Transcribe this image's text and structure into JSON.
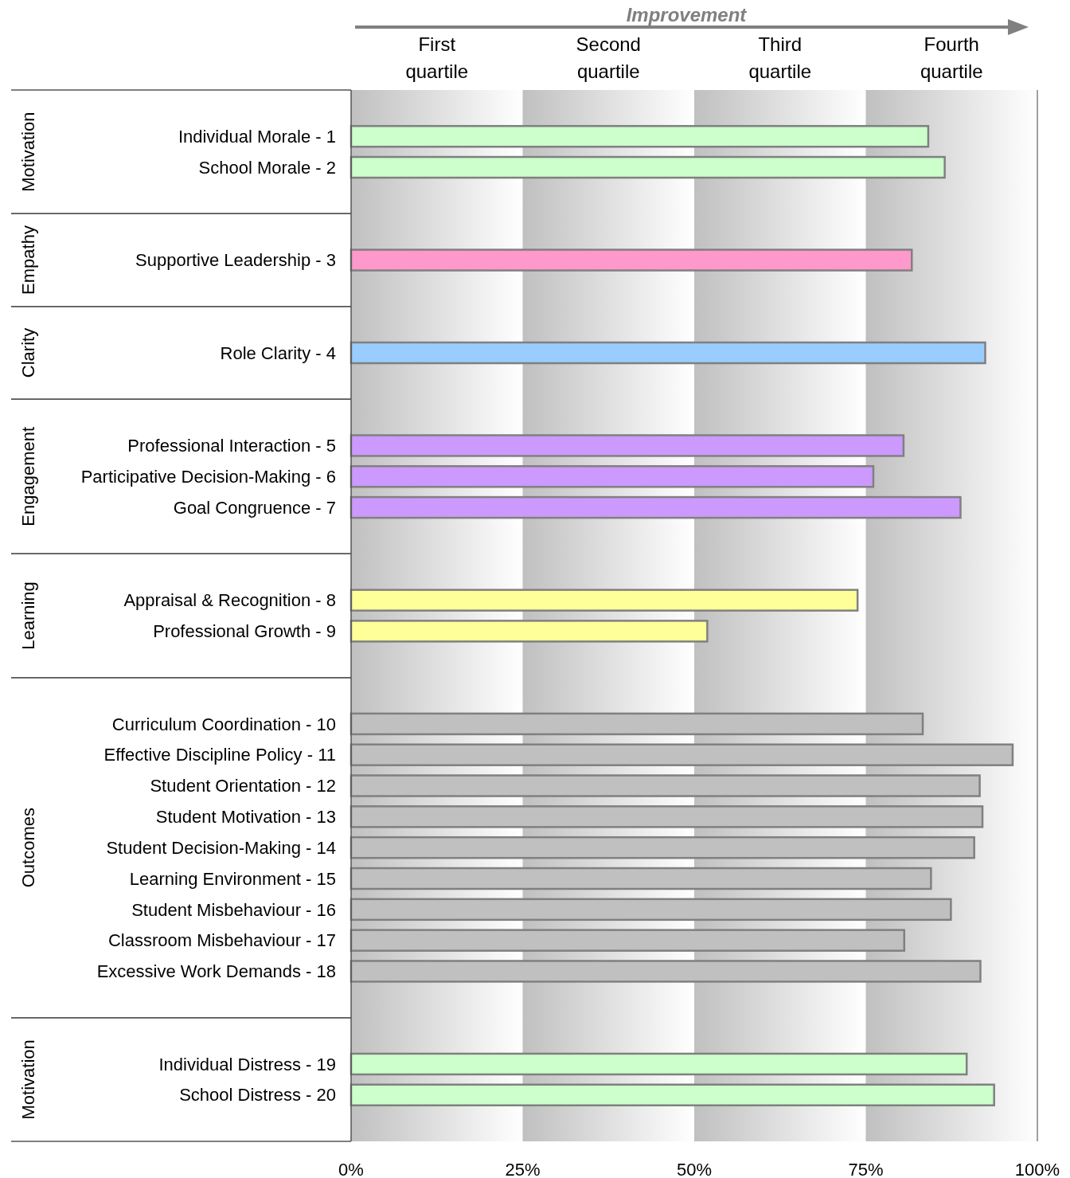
{
  "chart_data": {
    "type": "bar",
    "orientation": "horizontal",
    "categories": [
      null,
      "Individual Morale - 1",
      "School Morale - 2",
      null,
      null,
      "Supportive Leadership - 3",
      null,
      null,
      "Role Clarity - 4",
      null,
      null,
      "Professional Interaction - 5",
      "Participative Decision-Making - 6",
      "Goal Congruence - 7",
      null,
      null,
      "Appraisal & Recognition - 8",
      "Professional Growth - 9",
      null,
      null,
      "Curriculum Coordination - 10",
      "Effective Discipline Policy - 11",
      "Student Orientation - 12",
      "Student Motivation - 13",
      "Student Decision-Making - 14",
      "Learning Environment - 15",
      "Student Misbehaviour - 16",
      "Classroom Misbehaviour - 17",
      "Excessive Work Demands - 18",
      null,
      null,
      "Individual Distress - 19",
      "School Distress - 20",
      null
    ],
    "series": [
      {
        "color": "#ccffcc",
        "values": [
          null,
          84.1,
          86.5,
          null,
          null,
          null,
          null,
          null,
          null,
          null,
          null,
          null,
          null,
          null,
          null,
          null,
          null,
          null,
          null,
          null,
          null,
          null,
          null,
          null,
          null,
          null,
          null,
          null,
          null,
          null,
          null,
          null,
          null,
          null
        ]
      },
      {
        "color": "#ff99cc",
        "values": [
          null,
          null,
          null,
          null,
          null,
          81.7,
          null,
          null,
          null,
          null,
          null,
          null,
          null,
          null,
          null,
          null,
          null,
          null,
          null,
          null,
          null,
          null,
          null,
          null,
          null,
          null,
          null,
          null,
          null,
          null,
          null,
          null,
          null,
          null
        ]
      },
      {
        "color": "#99ccff",
        "values": [
          null,
          null,
          null,
          null,
          null,
          null,
          null,
          null,
          92.4,
          null,
          null,
          null,
          null,
          null,
          null,
          null,
          null,
          null,
          null,
          null,
          null,
          null,
          null,
          null,
          null,
          null,
          null,
          null,
          null,
          null,
          null,
          null,
          null,
          null
        ]
      },
      {
        "color": "#cc99ff",
        "values": [
          null,
          null,
          null,
          null,
          null,
          null,
          null,
          null,
          null,
          null,
          null,
          80.5,
          76.1,
          88.8,
          null,
          null,
          null,
          null,
          null,
          null,
          null,
          null,
          null,
          null,
          null,
          null,
          null,
          null,
          null,
          null,
          null,
          null,
          null,
          null
        ]
      },
      {
        "color": "#ffff99",
        "values": [
          null,
          null,
          null,
          null,
          null,
          null,
          null,
          null,
          null,
          null,
          null,
          null,
          null,
          null,
          null,
          null,
          73.8,
          51.9,
          null,
          null,
          null,
          null,
          null,
          null,
          null,
          null,
          null,
          null,
          null,
          null,
          null,
          null,
          null,
          null
        ]
      },
      {
        "color": "#c0c0c0",
        "values": [
          null,
          null,
          null,
          null,
          null,
          null,
          null,
          null,
          null,
          null,
          null,
          null,
          null,
          null,
          null,
          null,
          null,
          null,
          null,
          null,
          83.3,
          96.4,
          91.6,
          92.0,
          90.8,
          84.5,
          87.4,
          80.6,
          91.7,
          null,
          null,
          null,
          null,
          null
        ]
      },
      {
        "color": "#ccffcc",
        "values": [
          null,
          null,
          null,
          null,
          null,
          null,
          null,
          null,
          null,
          null,
          null,
          null,
          null,
          null,
          null,
          null,
          null,
          null,
          null,
          null,
          null,
          null,
          null,
          null,
          null,
          null,
          null,
          null,
          null,
          null,
          null,
          89.7,
          93.7,
          null
        ]
      }
    ],
    "xlim": [
      0,
      100
    ],
    "xticks": [
      {
        "value": 0,
        "label": "0%"
      },
      {
        "value": 25,
        "label": "25%"
      },
      {
        "value": 50,
        "label": "50%"
      },
      {
        "value": 75,
        "label": "75%"
      },
      {
        "value": 100,
        "label": "100%"
      }
    ],
    "annotations": [
      "Improvement",
      "Motivation",
      "Empathy",
      "Clarity",
      "Engagement",
      "Learning",
      "Outcomes",
      "Motivation"
    ],
    "bands": [
      {
        "axis": "x",
        "from": 0,
        "to": 25,
        "color": "#c0c0c0",
        "label": "First quartile"
      },
      {
        "axis": "x",
        "from": 25,
        "to": 50,
        "color": "#c0c0c0",
        "label": "Second quartile"
      },
      {
        "axis": "x",
        "from": 50,
        "to": 75,
        "color": "#c0c0c0",
        "label": "Third quartile"
      },
      {
        "axis": "x",
        "from": 75,
        "to": 100,
        "color": "#c0c0c0",
        "label": "Fourth quartile"
      }
    ],
    "grid": false
  }
}
